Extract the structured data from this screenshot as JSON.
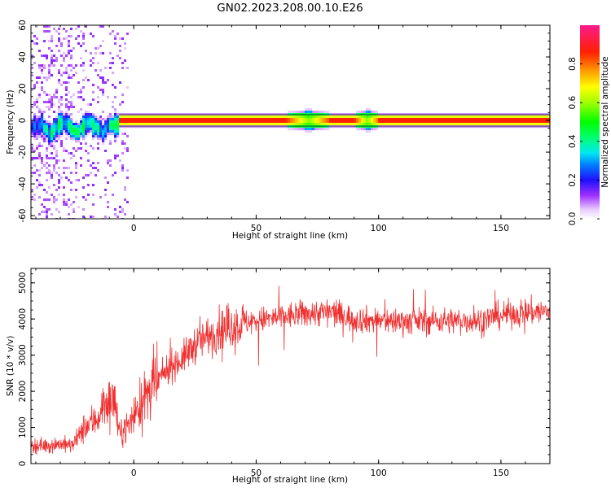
{
  "title": "GN02.2023.208.00.10.E26",
  "colors": {
    "snr_line": "#f03030",
    "axes": "#000000"
  },
  "chart_data": [
    {
      "type": "heatmap",
      "xlabel": "Height of straight line (km)",
      "ylabel": "Frequency (Hz)",
      "xlim": [
        -42,
        170
      ],
      "ylim": [
        -62,
        60
      ],
      "xticks": [
        0,
        50,
        100,
        150
      ],
      "yticks": [
        -60,
        -40,
        -20,
        0,
        20,
        40,
        60
      ],
      "colormap": "gist_ncar",
      "colorbar": {
        "label": "Normalized spectral amplitude",
        "range": [
          0.0,
          1.0
        ],
        "ticks": [
          0.0,
          0.2,
          0.4,
          0.6,
          0.8
        ]
      },
      "features": {
        "main_band_center_hz": 0,
        "band_x_start_km": -6,
        "wide_band_intervals_km": [
          [
            65,
            78
          ],
          [
            93,
            98
          ]
        ],
        "noisy_region_km": [
          -42,
          -5
        ]
      }
    },
    {
      "type": "line",
      "xlabel": "Height of straight line (km)",
      "ylabel": "SNR (10 * v/v)",
      "xlim": [
        -42,
        170
      ],
      "ylim": [
        0,
        5400
      ],
      "xticks": [
        0,
        50,
        100,
        150
      ],
      "yticks": [
        0,
        1000,
        2000,
        3000,
        4000,
        5000
      ],
      "series": [
        {
          "envelope_x": [
            -42,
            -35,
            -30,
            -25,
            -20,
            -15,
            -12,
            -8,
            -6,
            -2,
            2,
            6,
            10,
            15,
            20,
            25,
            30,
            35,
            40,
            45,
            50,
            55,
            60,
            70,
            80,
            90,
            100,
            110,
            120,
            130,
            140,
            150,
            160,
            170
          ],
          "envelope_y": [
            500,
            500,
            550,
            500,
            1000,
            1250,
            1650,
            1800,
            800,
            1100,
            1600,
            1900,
            2300,
            2700,
            2900,
            3300,
            3500,
            3700,
            3800,
            3900,
            3950,
            4000,
            4050,
            4150,
            4200,
            4000,
            3950,
            3950,
            3950,
            3950,
            3950,
            4100,
            4200,
            4200
          ]
        }
      ]
    }
  ]
}
